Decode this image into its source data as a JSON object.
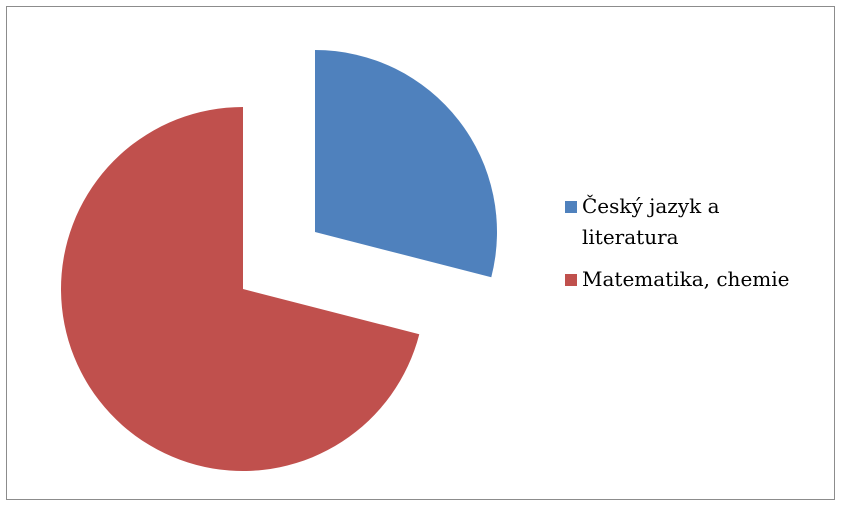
{
  "chart_data": {
    "type": "pie",
    "title": "",
    "categories": [
      "Český jazyk a literatura",
      "Matematika, chemie"
    ],
    "values": [
      29,
      71
    ],
    "colors": [
      "#4f81bd",
      "#c0504d"
    ],
    "start_angle_deg": 0,
    "direction": "clockwise",
    "exploded": true,
    "legend_position": "right"
  }
}
